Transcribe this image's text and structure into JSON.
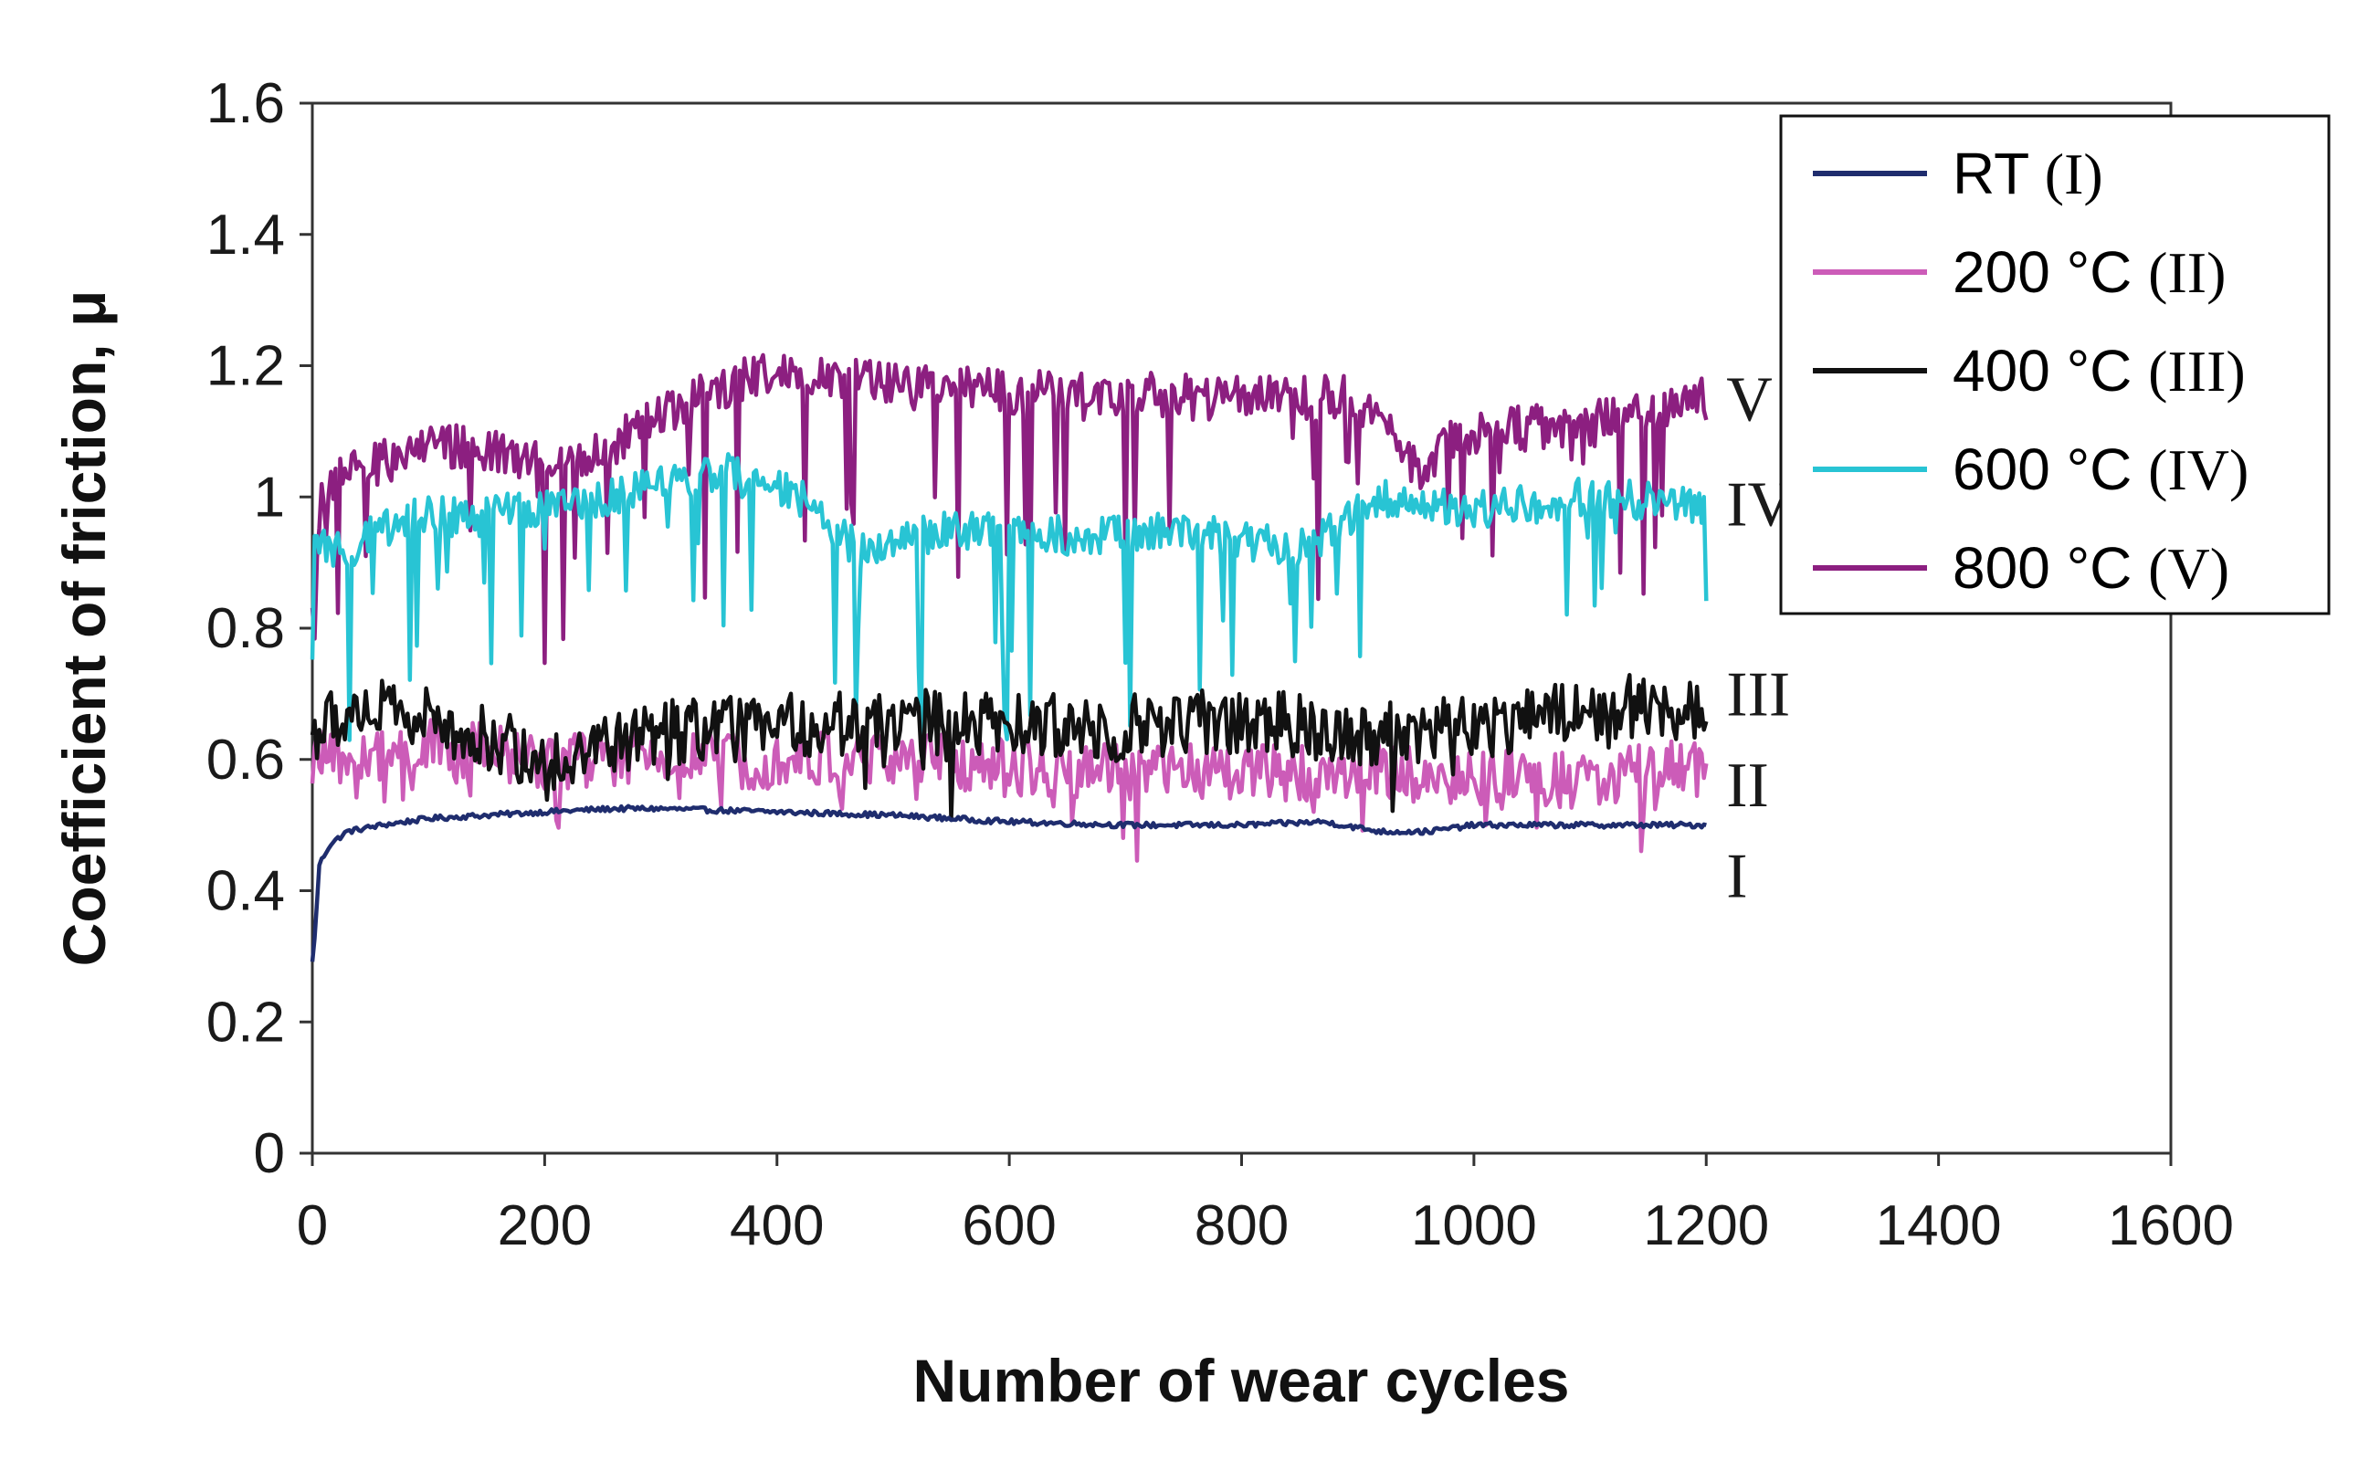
{
  "chart_data": {
    "type": "line",
    "title": "",
    "xlabel": "Number of wear cycles",
    "ylabel": "Coefficient of friction, μ",
    "xlim": [
      0,
      1600
    ],
    "ylim": [
      0,
      1.6
    ],
    "xticks": [
      "0",
      "200",
      "400",
      "600",
      "800",
      "1000",
      "1200",
      "1400",
      "1600"
    ],
    "yticks": [
      "0",
      "0.2",
      "0.4",
      "0.6",
      "0.8",
      "1",
      "1.2",
      "1.4",
      "1.6"
    ],
    "grid": false,
    "legend_position": "top-right",
    "series": [
      {
        "name": "RT",
        "roman": "(I)",
        "curve_label": "I",
        "color": "#1f2d6e",
        "noise": 0.004,
        "spikes": 0,
        "points": [
          [
            0,
            0.29
          ],
          [
            3,
            0.35
          ],
          [
            6,
            0.44
          ],
          [
            15,
            0.47
          ],
          [
            30,
            0.49
          ],
          [
            60,
            0.5
          ],
          [
            100,
            0.51
          ],
          [
            150,
            0.515
          ],
          [
            200,
            0.52
          ],
          [
            260,
            0.525
          ],
          [
            300,
            0.525
          ],
          [
            400,
            0.52
          ],
          [
            500,
            0.515
          ],
          [
            600,
            0.505
          ],
          [
            700,
            0.5
          ],
          [
            800,
            0.5
          ],
          [
            870,
            0.505
          ],
          [
            920,
            0.49
          ],
          [
            960,
            0.49
          ],
          [
            1000,
            0.5
          ],
          [
            1100,
            0.5
          ],
          [
            1200,
            0.5
          ]
        ]
      },
      {
        "name": "200 °C",
        "roman": "(II)",
        "curve_label": "II",
        "color": "#cc5cb8",
        "noise": 0.045,
        "spikes": 0.06,
        "points": [
          [
            0,
            0.6
          ],
          [
            50,
            0.6
          ],
          [
            100,
            0.62
          ],
          [
            200,
            0.6
          ],
          [
            300,
            0.6
          ],
          [
            400,
            0.6
          ],
          [
            500,
            0.6
          ],
          [
            600,
            0.59
          ],
          [
            700,
            0.58
          ],
          [
            800,
            0.58
          ],
          [
            900,
            0.58
          ],
          [
            1000,
            0.57
          ],
          [
            1100,
            0.57
          ],
          [
            1200,
            0.59
          ]
        ]
      },
      {
        "name": "400 °C",
        "roman": "(III)",
        "curve_label": "III",
        "color": "#111111",
        "noise": 0.05,
        "spikes": 0.05,
        "points": [
          [
            0,
            0.64
          ],
          [
            40,
            0.68
          ],
          [
            100,
            0.66
          ],
          [
            200,
            0.6
          ],
          [
            300,
            0.64
          ],
          [
            400,
            0.65
          ],
          [
            500,
            0.66
          ],
          [
            600,
            0.65
          ],
          [
            700,
            0.65
          ],
          [
            800,
            0.66
          ],
          [
            900,
            0.64
          ],
          [
            1000,
            0.65
          ],
          [
            1100,
            0.68
          ],
          [
            1200,
            0.68
          ]
        ]
      },
      {
        "name": "600 °C",
        "roman": "(IV)",
        "curve_label": "IV",
        "color": "#28c4d4",
        "noise": 0.03,
        "spikes": 0.09,
        "points": [
          [
            0,
            0.92
          ],
          [
            30,
            0.92
          ],
          [
            80,
            0.97
          ],
          [
            150,
            0.97
          ],
          [
            250,
            1.0
          ],
          [
            350,
            1.04
          ],
          [
            420,
            1.0
          ],
          [
            470,
            0.92
          ],
          [
            550,
            0.95
          ],
          [
            650,
            0.94
          ],
          [
            750,
            0.95
          ],
          [
            850,
            0.92
          ],
          [
            920,
            1.0
          ],
          [
            1000,
            0.98
          ],
          [
            1100,
            1.0
          ],
          [
            1200,
            0.99
          ]
        ]
      },
      {
        "name": "800 °C",
        "roman": "(V)",
        "curve_label": "V",
        "color": "#8c1f80",
        "noise": 0.035,
        "spikes": 0.08,
        "points": [
          [
            0,
            0.85
          ],
          [
            10,
            1.02
          ],
          [
            100,
            1.08
          ],
          [
            200,
            1.06
          ],
          [
            250,
            1.07
          ],
          [
            300,
            1.13
          ],
          [
            400,
            1.2
          ],
          [
            500,
            1.17
          ],
          [
            600,
            1.16
          ],
          [
            700,
            1.16
          ],
          [
            800,
            1.15
          ],
          [
            900,
            1.15
          ],
          [
            950,
            1.05
          ],
          [
            1000,
            1.1
          ],
          [
            1100,
            1.11
          ],
          [
            1200,
            1.15
          ]
        ]
      }
    ]
  }
}
